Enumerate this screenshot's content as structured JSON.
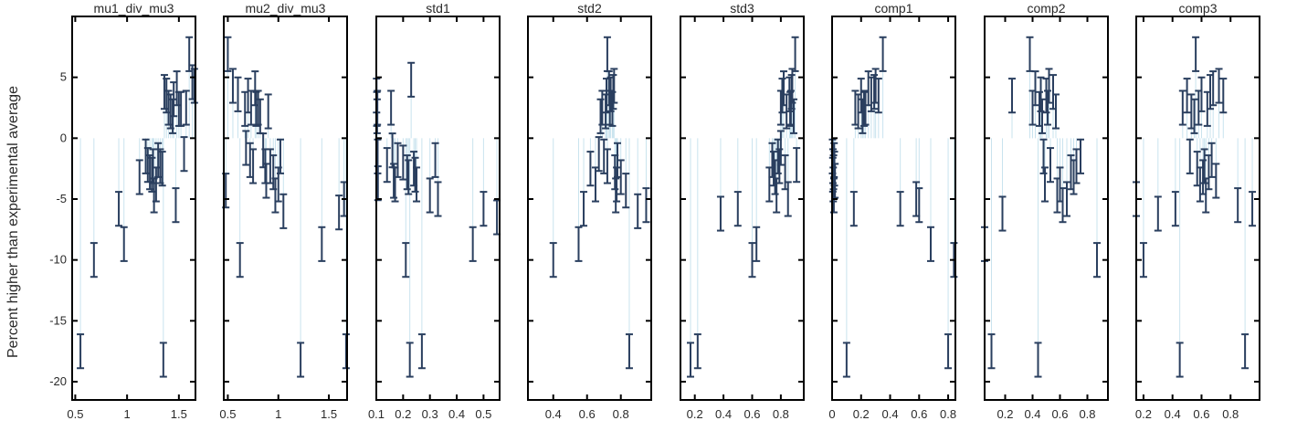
{
  "figure": {
    "ylabel": "Percent higher than experimental average",
    "colors": {
      "errorbar": "#2a3f5f",
      "frame": "#000000",
      "tick": "#000000",
      "stem": "#c9e3ee"
    }
  },
  "chart_data": {
    "type": "scatter",
    "ylabel": "Percent higher than experimental average",
    "ylim": [
      -21.5,
      10
    ],
    "yticks": [
      5,
      0,
      -5,
      -10,
      -15,
      -20
    ],
    "grid": false,
    "error_bars": true,
    "panels": [
      {
        "title": "mu1_div_mu3",
        "xlim": [
          0.47,
          1.66
        ],
        "xticks": [
          {
            "v": 0.5,
            "label": "0.5"
          },
          {
            "v": 1,
            "label": "1"
          },
          {
            "v": 1.5,
            "label": "1.5"
          }
        ],
        "points": [
          [
            0.55,
            -17.5
          ],
          [
            0.68,
            -10
          ],
          [
            0.92,
            -5.8
          ],
          [
            0.97,
            -8.7
          ],
          [
            1.12,
            -3.2
          ],
          [
            1.18,
            -1.5
          ],
          [
            1.2,
            -2.2
          ],
          [
            1.22,
            -2.8
          ],
          [
            1.24,
            -3
          ],
          [
            1.25,
            -2.3
          ],
          [
            1.26,
            -4.7
          ],
          [
            1.28,
            -3.8
          ],
          [
            1.3,
            -1.8
          ],
          [
            1.32,
            -2.3
          ],
          [
            1.34,
            -2.5
          ],
          [
            1.35,
            -18.2
          ],
          [
            1.36,
            3.8
          ],
          [
            1.38,
            3.5
          ],
          [
            1.4,
            2.5
          ],
          [
            1.42,
            2.2
          ],
          [
            1.44,
            1.8
          ],
          [
            1.45,
            3.2
          ],
          [
            1.47,
            -5.5
          ],
          [
            1.48,
            4.1
          ],
          [
            1.5,
            2.4
          ],
          [
            1.52,
            2.4
          ],
          [
            1.55,
            -1.3
          ],
          [
            1.57,
            2.5
          ],
          [
            1.6,
            6.9
          ],
          [
            1.63,
            4.6
          ],
          [
            1.65,
            4.3
          ]
        ]
      },
      {
        "title": "mu2_div_mu3",
        "xlim": [
          0.46,
          1.68
        ],
        "xticks": [
          {
            "v": 0.5,
            "label": "0.5"
          },
          {
            "v": 1,
            "label": "1"
          },
          {
            "v": 1.5,
            "label": "1.5"
          }
        ],
        "points": [
          [
            0.48,
            -4.3
          ],
          [
            0.5,
            6.9
          ],
          [
            0.55,
            4.3
          ],
          [
            0.6,
            3.6
          ],
          [
            0.62,
            -10
          ],
          [
            0.67,
            2.4
          ],
          [
            0.68,
            -0.8
          ],
          [
            0.7,
            3.5
          ],
          [
            0.72,
            -1.8
          ],
          [
            0.73,
            2.5
          ],
          [
            0.75,
            -2.3
          ],
          [
            0.77,
            4.1
          ],
          [
            0.78,
            2.4
          ],
          [
            0.8,
            2.5
          ],
          [
            0.82,
            1.8
          ],
          [
            0.85,
            -1
          ],
          [
            0.87,
            -2.3
          ],
          [
            0.88,
            -3.5
          ],
          [
            0.9,
            2.2
          ],
          [
            0.92,
            -2.3
          ],
          [
            0.95,
            -2.8
          ],
          [
            0.97,
            -4.7
          ],
          [
            1,
            -3.8
          ],
          [
            1.02,
            -1.5
          ],
          [
            1.05,
            -6
          ],
          [
            1.22,
            -18.2
          ],
          [
            1.43,
            -8.7
          ],
          [
            1.6,
            -6.1
          ],
          [
            1.65,
            -5
          ],
          [
            1.67,
            -17.5
          ]
        ]
      },
      {
        "title": "std1",
        "xlim": [
          0.1,
          0.56
        ],
        "xticks": [
          {
            "v": 0.1,
            "label": "0.1"
          },
          {
            "v": 0.2,
            "label": "0.2"
          },
          {
            "v": 0.3,
            "label": "0.3"
          },
          {
            "v": 0.4,
            "label": "0.4"
          },
          {
            "v": 0.5,
            "label": "0.5"
          }
        ],
        "points": [
          [
            0.101,
            3.5
          ],
          [
            0.102,
            2.4
          ],
          [
            0.103,
            1.8
          ],
          [
            0.104,
            2.5
          ],
          [
            0.105,
            -1.5
          ],
          [
            0.106,
            -3.7
          ],
          [
            0.14,
            -2.2
          ],
          [
            0.155,
            2.5
          ],
          [
            0.16,
            -1
          ],
          [
            0.165,
            -3.5
          ],
          [
            0.17,
            -3.8
          ],
          [
            0.18,
            -1.8
          ],
          [
            0.2,
            -2
          ],
          [
            0.21,
            -10
          ],
          [
            0.215,
            -2.8
          ],
          [
            0.22,
            -3.2
          ],
          [
            0.225,
            -18.2
          ],
          [
            0.23,
            4.8
          ],
          [
            0.24,
            -2.5
          ],
          [
            0.245,
            -3
          ],
          [
            0.25,
            -3.8
          ],
          [
            0.27,
            -17.5
          ],
          [
            0.3,
            -4.7
          ],
          [
            0.32,
            -1.8
          ],
          [
            0.33,
            -5
          ],
          [
            0.46,
            -8.7
          ],
          [
            0.5,
            -5.8
          ],
          [
            0.55,
            -6.5
          ]
        ]
      },
      {
        "title": "std2",
        "xlim": [
          0.25,
          0.98
        ],
        "xticks": [
          {
            "v": 0.4,
            "label": "0.4"
          },
          {
            "v": 0.6,
            "label": "0.6"
          },
          {
            "v": 0.8,
            "label": "0.8"
          }
        ],
        "points": [
          [
            0.4,
            -10
          ],
          [
            0.55,
            -8.7
          ],
          [
            0.58,
            -5.8
          ],
          [
            0.62,
            -2.5
          ],
          [
            0.65,
            -3.8
          ],
          [
            0.67,
            -1.3
          ],
          [
            0.68,
            1.8
          ],
          [
            0.69,
            2.5
          ],
          [
            0.7,
            -1.5
          ],
          [
            0.71,
            2.2
          ],
          [
            0.715,
            3.5
          ],
          [
            0.72,
            -2.3
          ],
          [
            0.72,
            6.9
          ],
          [
            0.73,
            4.1
          ],
          [
            0.735,
            2.5
          ],
          [
            0.74,
            3.6
          ],
          [
            0.75,
            2.4
          ],
          [
            0.755,
            3.8
          ],
          [
            0.76,
            4.3
          ],
          [
            0.765,
            -2.8
          ],
          [
            0.77,
            -4.7
          ],
          [
            0.775,
            -3.8
          ],
          [
            0.78,
            -1.8
          ],
          [
            0.8,
            -3.2
          ],
          [
            0.83,
            -4.3
          ],
          [
            0.85,
            -17.5
          ],
          [
            0.9,
            -6
          ],
          [
            0.95,
            -5.5
          ]
        ]
      },
      {
        "title": "std3",
        "xlim": [
          0.1,
          0.96
        ],
        "xticks": [
          {
            "v": 0.2,
            "label": "0.2"
          },
          {
            "v": 0.4,
            "label": "0.4"
          },
          {
            "v": 0.6,
            "label": "0.6"
          },
          {
            "v": 0.8,
            "label": "0.8"
          }
        ],
        "points": [
          [
            0.17,
            -18.2
          ],
          [
            0.22,
            -17.5
          ],
          [
            0.38,
            -6.2
          ],
          [
            0.5,
            -5.8
          ],
          [
            0.6,
            -10
          ],
          [
            0.63,
            -8.7
          ],
          [
            0.72,
            -3.8
          ],
          [
            0.74,
            -1.8
          ],
          [
            0.75,
            -2.5
          ],
          [
            0.76,
            -3.2
          ],
          [
            0.77,
            -4.7
          ],
          [
            0.78,
            -1.5
          ],
          [
            0.79,
            -2.3
          ],
          [
            0.8,
            -0.8
          ],
          [
            0.8,
            2.5
          ],
          [
            0.81,
            3.5
          ],
          [
            0.82,
            4.1
          ],
          [
            0.83,
            -2.8
          ],
          [
            0.84,
            2.2
          ],
          [
            0.85,
            -5
          ],
          [
            0.86,
            3.6
          ],
          [
            0.865,
            2.4
          ],
          [
            0.87,
            2.5
          ],
          [
            0.875,
            3.8
          ],
          [
            0.88,
            4.3
          ],
          [
            0.89,
            1.8
          ],
          [
            0.9,
            6.9
          ],
          [
            0.91,
            -2.2
          ]
        ]
      },
      {
        "title": "comp1",
        "xlim": [
          0,
          0.85
        ],
        "xticks": [
          {
            "v": 0,
            "label": "0"
          },
          {
            "v": 0.2,
            "label": "0.2"
          },
          {
            "v": 0.4,
            "label": "0.4"
          },
          {
            "v": 0.6,
            "label": "0.6"
          },
          {
            "v": 0.8,
            "label": "0.8"
          }
        ],
        "points": [
          [
            0.003,
            -1.5
          ],
          [
            0.005,
            -3
          ],
          [
            0.006,
            -2.3
          ],
          [
            0.008,
            -3.8
          ],
          [
            0.01,
            -2.8
          ],
          [
            0.012,
            -4.7
          ],
          [
            0.014,
            -1.8
          ],
          [
            0.016,
            -2.5
          ],
          [
            0.02,
            -3.5
          ],
          [
            0.1,
            -18.2
          ],
          [
            0.15,
            -5.8
          ],
          [
            0.16,
            2.5
          ],
          [
            0.18,
            2.2
          ],
          [
            0.2,
            3.5
          ],
          [
            0.21,
            1.8
          ],
          [
            0.22,
            2.4
          ],
          [
            0.23,
            2.5
          ],
          [
            0.25,
            4.1
          ],
          [
            0.27,
            3.6
          ],
          [
            0.29,
            3.8
          ],
          [
            0.3,
            4.3
          ],
          [
            0.32,
            3.5
          ],
          [
            0.35,
            6.9
          ],
          [
            0.47,
            -5.8
          ],
          [
            0.58,
            -5
          ],
          [
            0.6,
            -5.5
          ],
          [
            0.68,
            -8.7
          ],
          [
            0.8,
            -17.5
          ],
          [
            0.84,
            -10
          ]
        ]
      },
      {
        "title": "comp2",
        "xlim": [
          0.05,
          0.95
        ],
        "xticks": [
          {
            "v": 0.2,
            "label": "0.2"
          },
          {
            "v": 0.4,
            "label": "0.4"
          },
          {
            "v": 0.6,
            "label": "0.6"
          },
          {
            "v": 0.8,
            "label": "0.8"
          }
        ],
        "points": [
          [
            0.05,
            -8.7
          ],
          [
            0.1,
            -17.5
          ],
          [
            0.18,
            -6.2
          ],
          [
            0.25,
            3.5
          ],
          [
            0.38,
            6.9
          ],
          [
            0.4,
            2.5
          ],
          [
            0.42,
            4.1
          ],
          [
            0.44,
            -18.2
          ],
          [
            0.45,
            2.4
          ],
          [
            0.46,
            3.6
          ],
          [
            0.47,
            1.8
          ],
          [
            0.48,
            -1.5
          ],
          [
            0.49,
            -3.8
          ],
          [
            0.5,
            3.5
          ],
          [
            0.51,
            2.5
          ],
          [
            0.52,
            4.3
          ],
          [
            0.53,
            -2.2
          ],
          [
            0.55,
            3.8
          ],
          [
            0.57,
            2.2
          ],
          [
            0.58,
            -4.7
          ],
          [
            0.6,
            -3.8
          ],
          [
            0.62,
            -5.5
          ],
          [
            0.65,
            -5
          ],
          [
            0.68,
            -2.8
          ],
          [
            0.7,
            -3.2
          ],
          [
            0.72,
            -2.3
          ],
          [
            0.75,
            -1.5
          ],
          [
            0.87,
            -10
          ]
        ]
      },
      {
        "title": "comp3",
        "xlim": [
          0.15,
          1.0
        ],
        "xticks": [
          {
            "v": 0.2,
            "label": "0.2"
          },
          {
            "v": 0.4,
            "label": "0.4"
          },
          {
            "v": 0.6,
            "label": "0.6"
          },
          {
            "v": 0.8,
            "label": "0.8"
          }
        ],
        "points": [
          [
            0.15,
            -5
          ],
          [
            0.2,
            -10
          ],
          [
            0.3,
            -6.2
          ],
          [
            0.42,
            -5.8
          ],
          [
            0.45,
            -18.2
          ],
          [
            0.47,
            2.5
          ],
          [
            0.5,
            3.5
          ],
          [
            0.52,
            -1.5
          ],
          [
            0.53,
            2.2
          ],
          [
            0.55,
            1.8
          ],
          [
            0.56,
            6.9
          ],
          [
            0.57,
            -2.5
          ],
          [
            0.58,
            2.5
          ],
          [
            0.59,
            -3.8
          ],
          [
            0.6,
            3.6
          ],
          [
            0.61,
            -3.2
          ],
          [
            0.62,
            -2.3
          ],
          [
            0.63,
            -4.7
          ],
          [
            0.64,
            2.4
          ],
          [
            0.65,
            -2.8
          ],
          [
            0.66,
            3.8
          ],
          [
            0.67,
            -1.8
          ],
          [
            0.68,
            4.1
          ],
          [
            0.7,
            -3.5
          ],
          [
            0.72,
            4.3
          ],
          [
            0.75,
            3.5
          ],
          [
            0.85,
            -5.5
          ],
          [
            0.9,
            -17.5
          ],
          [
            0.95,
            -5.8
          ]
        ]
      }
    ]
  }
}
